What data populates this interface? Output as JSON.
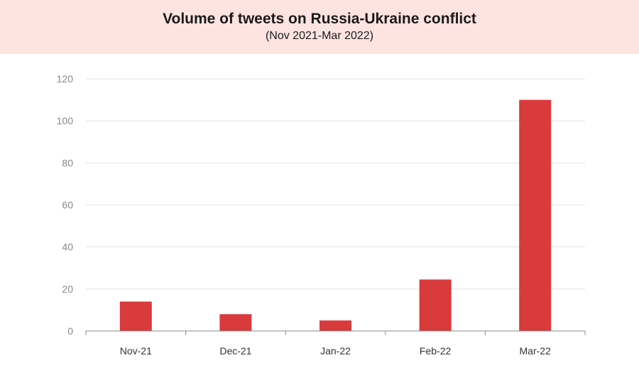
{
  "header": {
    "title": "Volume of tweets on Russia-Ukraine conflict",
    "subtitle": "(Nov 2021-Mar 2022)"
  },
  "colors": {
    "header_bg": "#fde4e1",
    "bar": "#d93a3c",
    "grid": "#e0e0e0",
    "axis": "#888888"
  },
  "chart_data": {
    "type": "bar",
    "title": "Volume of tweets on Russia-Ukraine conflict",
    "subtitle": "(Nov 2021-Mar 2022)",
    "categories": [
      "Nov-21",
      "Dec-21",
      "Jan-22",
      "Feb-22",
      "Mar-22"
    ],
    "values": [
      14,
      8,
      5,
      24.5,
      110
    ],
    "xlabel": "",
    "ylabel": "",
    "ylim": [
      0,
      120
    ],
    "yticks": [
      0,
      20,
      40,
      60,
      80,
      100,
      120
    ],
    "grid": true,
    "legend": "none"
  }
}
